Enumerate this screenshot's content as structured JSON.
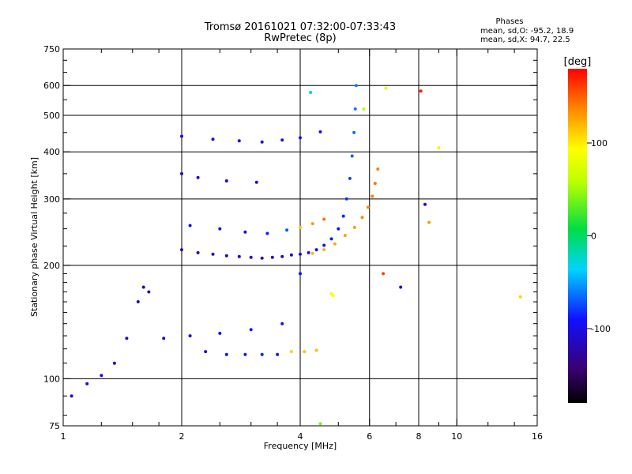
{
  "chart_data": {
    "type": "scatter",
    "title": "Tromsø 20161021 07:32:00-07:33:43",
    "subtitle": "RwPretec (8p)",
    "xlabel": "Frequency [MHz]",
    "ylabel": "Stationary phase Virtual Height [km]",
    "x_scale": "log",
    "y_scale": "log",
    "xlim": [
      1,
      16
    ],
    "ylim": [
      75,
      750
    ],
    "grid": true,
    "x_ticks": [
      1,
      2,
      4,
      6,
      8,
      10,
      16
    ],
    "x_tick_labels": [
      "1",
      "2",
      "4",
      "6",
      "8",
      "10",
      "16"
    ],
    "x_minor_ticks": [
      1.25,
      1.5,
      1.75,
      2.5,
      3,
      3.5,
      5,
      7,
      9,
      12,
      14
    ],
    "x_grid": [
      2,
      4,
      6,
      8,
      10
    ],
    "y_ticks": [
      75,
      100,
      200,
      300,
      400,
      500,
      600,
      750
    ],
    "y_tick_labels": [
      "75",
      "100",
      "200",
      "300",
      "400",
      "500",
      "600",
      "750"
    ],
    "y_minor_ticks": [
      80,
      90,
      110,
      120,
      130,
      140,
      150,
      160,
      170,
      180,
      190,
      225,
      250,
      275,
      350,
      450,
      550,
      650,
      700
    ],
    "y_grid": [
      100,
      200,
      300,
      400,
      500,
      600
    ],
    "info": {
      "heading": "Phases",
      "line1": "mean, sd,O: -95.2, 18.9",
      "line2": "mean, sd,X:  94.7, 22.5"
    },
    "colorbar": {
      "label": "[deg]",
      "range": [
        -180,
        180
      ],
      "ticks": [
        100,
        0,
        -100
      ],
      "tick_labels": [
        "100",
        "0",
        "-100"
      ]
    },
    "series": [
      {
        "values_desc": "phase (deg)",
        "points": [
          [
            2.0,
            220,
            -110
          ],
          [
            2.2,
            216,
            -112
          ],
          [
            2.4,
            214,
            -115
          ],
          [
            2.6,
            212,
            -116
          ],
          [
            2.8,
            211,
            -118
          ],
          [
            3.0,
            210,
            -118
          ],
          [
            3.2,
            209,
            -116
          ],
          [
            3.4,
            210,
            -113
          ],
          [
            3.6,
            211,
            -110
          ],
          [
            3.8,
            213,
            -108
          ],
          [
            4.0,
            214,
            -105
          ],
          [
            4.2,
            216,
            -100
          ],
          [
            4.4,
            220,
            -95
          ],
          [
            4.6,
            226,
            -92
          ],
          [
            4.8,
            235,
            -90
          ],
          [
            5.0,
            250,
            -88
          ],
          [
            5.15,
            270,
            -84
          ],
          [
            5.25,
            300,
            -80
          ],
          [
            5.35,
            340,
            -75
          ],
          [
            5.42,
            390,
            -70
          ],
          [
            5.48,
            450,
            -65
          ],
          [
            5.52,
            520,
            -60
          ],
          [
            5.55,
            600,
            -60
          ],
          [
            2.3,
            118,
            -95
          ],
          [
            2.6,
            116,
            -90
          ],
          [
            2.9,
            116,
            -88
          ],
          [
            3.2,
            116,
            -86
          ],
          [
            3.5,
            116,
            -88
          ],
          [
            3.8,
            118,
            110
          ],
          [
            4.1,
            118,
            115
          ],
          [
            4.4,
            119,
            118
          ],
          [
            4.3,
            215,
            120
          ],
          [
            4.6,
            220,
            122
          ],
          [
            4.9,
            228,
            125
          ],
          [
            5.2,
            240,
            128
          ],
          [
            5.5,
            252,
            130
          ],
          [
            5.75,
            268,
            135
          ],
          [
            5.95,
            285,
            138
          ],
          [
            6.1,
            305,
            140
          ],
          [
            6.2,
            330,
            142
          ],
          [
            6.3,
            360,
            140
          ],
          [
            2.1,
            255,
            -95
          ],
          [
            2.5,
            250,
            -90
          ],
          [
            2.9,
            245,
            -92
          ],
          [
            3.3,
            243,
            -88
          ],
          [
            3.7,
            248,
            -70
          ],
          [
            4.0,
            252,
            115
          ],
          [
            4.3,
            258,
            130
          ],
          [
            4.6,
            265,
            145
          ],
          [
            2.0,
            440,
            -100
          ],
          [
            2.4,
            432,
            -98
          ],
          [
            2.8,
            428,
            -100
          ],
          [
            3.2,
            425,
            -96
          ],
          [
            3.6,
            430,
            -95
          ],
          [
            4.0,
            436,
            -92
          ],
          [
            4.5,
            452,
            -90
          ],
          [
            2.0,
            350,
            -110
          ],
          [
            2.2,
            342,
            -105
          ],
          [
            2.6,
            335,
            -100
          ],
          [
            3.1,
            332,
            -98
          ],
          [
            1.05,
            90,
            -100
          ],
          [
            1.15,
            97,
            -100
          ],
          [
            1.25,
            102,
            -100
          ],
          [
            1.35,
            110,
            -110
          ],
          [
            1.45,
            128,
            -105
          ],
          [
            1.55,
            160,
            -110
          ],
          [
            1.6,
            175,
            -120
          ],
          [
            1.65,
            170,
            -120
          ],
          [
            1.8,
            128,
            -100
          ],
          [
            2.1,
            130,
            -95
          ],
          [
            2.5,
            132,
            -90
          ],
          [
            3.0,
            135,
            -88
          ],
          [
            3.6,
            140,
            -95
          ],
          [
            4.0,
            190,
            -95
          ],
          [
            4.8,
            168,
            95
          ],
          [
            4.85,
            166,
            90
          ],
          [
            6.5,
            190,
            160
          ],
          [
            8.1,
            580,
            170
          ],
          [
            9.0,
            410,
            100
          ],
          [
            14.5,
            165,
            110
          ],
          [
            8.3,
            290,
            -100
          ],
          [
            8.5,
            260,
            130
          ],
          [
            7.2,
            175,
            -105
          ],
          [
            6.6,
            590,
            80
          ],
          [
            5.8,
            520,
            60
          ],
          [
            4.25,
            575,
            -20
          ],
          [
            4.5,
            76,
            40
          ]
        ]
      }
    ]
  }
}
